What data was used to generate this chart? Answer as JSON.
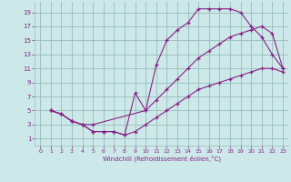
{
  "xlabel": "Windchill (Refroidissement éolien,°C)",
  "bg_color": "#cce8e8",
  "line_color": "#882288",
  "grid_color": "#99bbbb",
  "xlim": [
    -0.5,
    23.5
  ],
  "ylim": [
    0,
    20.5
  ],
  "xticks": [
    0,
    1,
    2,
    3,
    4,
    5,
    6,
    7,
    8,
    9,
    10,
    11,
    12,
    13,
    14,
    15,
    16,
    17,
    18,
    19,
    20,
    21,
    22,
    23
  ],
  "yticks": [
    1,
    3,
    5,
    7,
    9,
    11,
    13,
    15,
    17,
    19
  ],
  "line1_x": [
    1,
    2,
    3,
    4,
    5,
    6,
    7,
    8,
    9,
    10,
    11,
    12,
    13,
    14,
    15,
    16,
    17,
    18,
    19,
    20,
    21,
    22,
    23
  ],
  "line1_y": [
    5,
    4.5,
    3.5,
    3,
    2,
    2,
    2,
    1.5,
    7.5,
    5,
    11.5,
    15,
    16.5,
    17.5,
    19.5,
    19.5,
    19.5,
    19.5,
    19,
    17,
    15.5,
    13,
    11
  ],
  "line2_x": [
    1,
    2,
    3,
    4,
    5,
    10,
    11,
    12,
    13,
    14,
    15,
    16,
    17,
    18,
    19,
    20,
    21,
    22,
    23
  ],
  "line2_y": [
    5,
    4.5,
    3.5,
    3,
    3,
    5,
    6.5,
    8,
    9.5,
    11,
    12.5,
    13.5,
    14.5,
    15.5,
    16,
    16.5,
    17,
    16,
    11
  ],
  "line3_x": [
    1,
    2,
    3,
    4,
    5,
    6,
    7,
    8,
    9,
    10,
    11,
    12,
    13,
    14,
    15,
    16,
    17,
    18,
    19,
    20,
    21,
    22,
    23
  ],
  "line3_y": [
    5,
    4.5,
    3.5,
    3,
    2,
    2,
    2,
    1.5,
    2,
    3,
    4,
    5,
    6,
    7,
    8,
    8.5,
    9,
    9.5,
    10,
    10.5,
    11,
    11,
    10.5
  ]
}
